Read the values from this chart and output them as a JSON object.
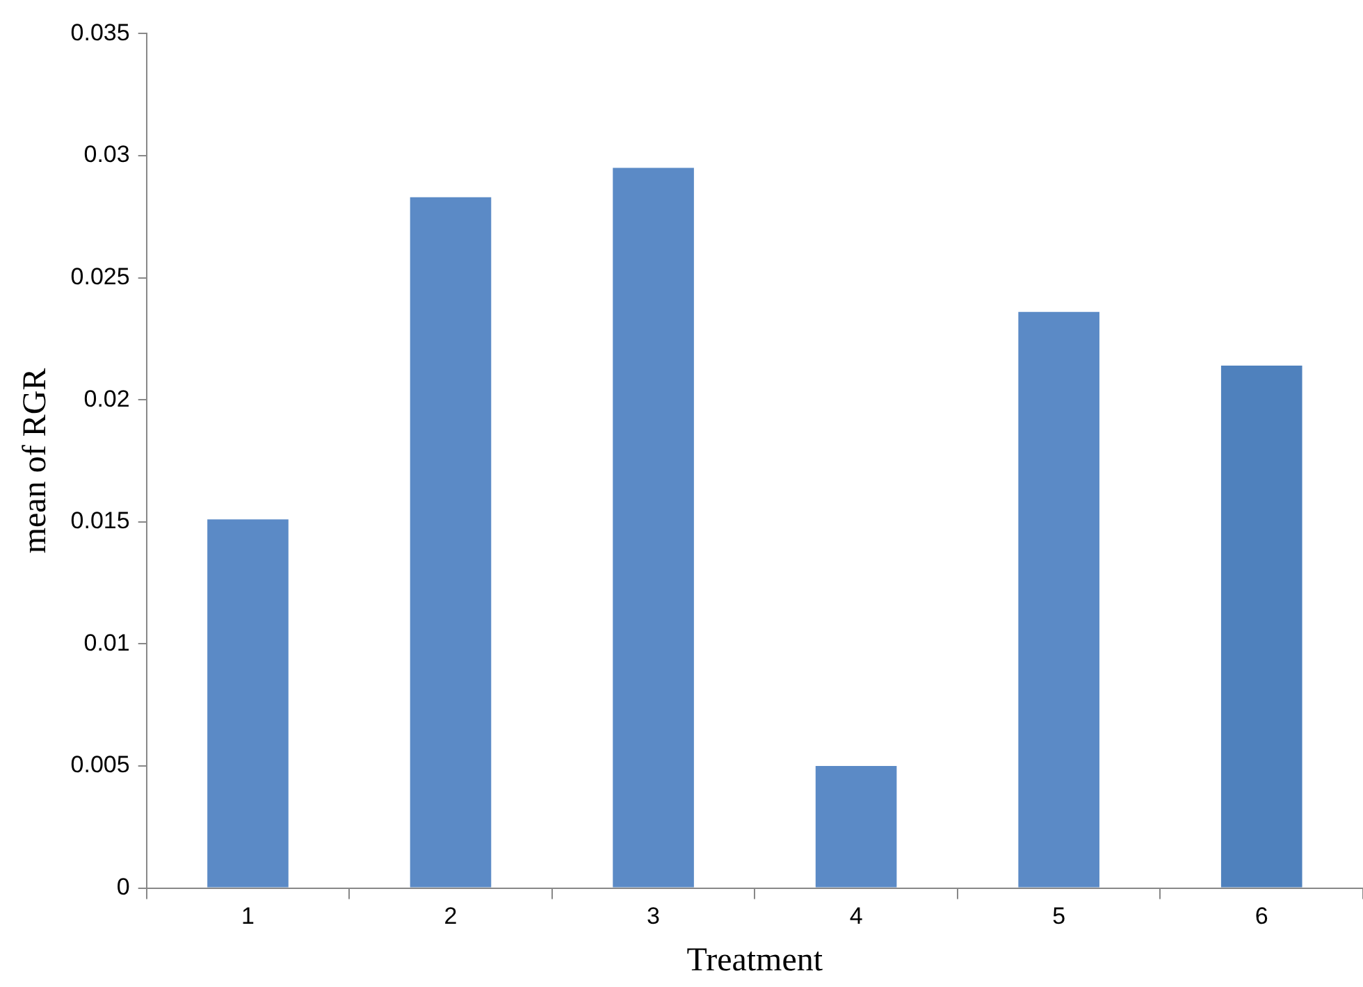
{
  "chart_data": {
    "type": "bar",
    "xlabel": "Treatment",
    "ylabel": "mean of RGR",
    "categories": [
      "1",
      "2",
      "3",
      "4",
      "5",
      "6"
    ],
    "values": [
      0.0151,
      0.0283,
      0.0295,
      0.005,
      0.0236,
      0.0214
    ],
    "colors": [
      "#5b8ac6",
      "#5b8ac6",
      "#5b8ac6",
      "#5b8ac6",
      "#5b8ac6",
      "#4f81bd"
    ],
    "ylim": [
      0,
      0.035
    ],
    "yticks": [
      0,
      0.005,
      0.01,
      0.015,
      0.02,
      0.025,
      0.03,
      0.035
    ],
    "grid": false
  }
}
